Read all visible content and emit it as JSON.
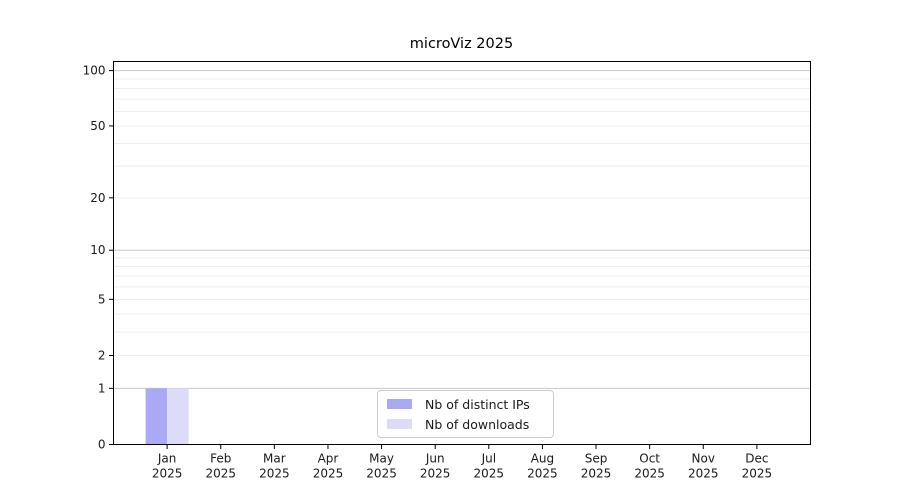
{
  "chart_data": {
    "type": "bar",
    "title": "microViz 2025",
    "categories": [
      "Jan",
      "Feb",
      "Mar",
      "Apr",
      "May",
      "Jun",
      "Jul",
      "Aug",
      "Sep",
      "Oct",
      "Nov",
      "Dec"
    ],
    "x_tick_second_line": "2025",
    "series": [
      {
        "name": "Nb of distinct IPs",
        "color": "#a9a9f6",
        "values": [
          1,
          0,
          0,
          0,
          0,
          0,
          0,
          0,
          0,
          0,
          0,
          0
        ]
      },
      {
        "name": "Nb of downloads",
        "color": "#dcdcf8",
        "values": [
          1,
          0,
          0,
          0,
          0,
          0,
          0,
          0,
          0,
          0,
          0,
          0
        ]
      }
    ],
    "y_scale": "log10(1+v)",
    "y_tick_values": [
      0,
      1,
      2,
      5,
      10,
      20,
      50,
      100
    ],
    "y_tick_labels": [
      "0",
      "1",
      "2",
      "5",
      "10",
      "20",
      "50",
      "100"
    ],
    "y_major_gridlines": [
      1,
      10,
      100
    ],
    "y_minor_gridlines": [
      2,
      3,
      4,
      5,
      6,
      7,
      8,
      9,
      20,
      30,
      40,
      50,
      60,
      70,
      80,
      90
    ],
    "ylim": [
      0,
      112
    ],
    "grid": true,
    "legend_position": "bottom-center"
  },
  "colors": {
    "background": "#ffffff",
    "axis": "#000000",
    "major_grid": "#c8c8c8",
    "minor_grid": "#ededed",
    "text": "#1a1a1a",
    "legend_border": "#cccccc"
  }
}
